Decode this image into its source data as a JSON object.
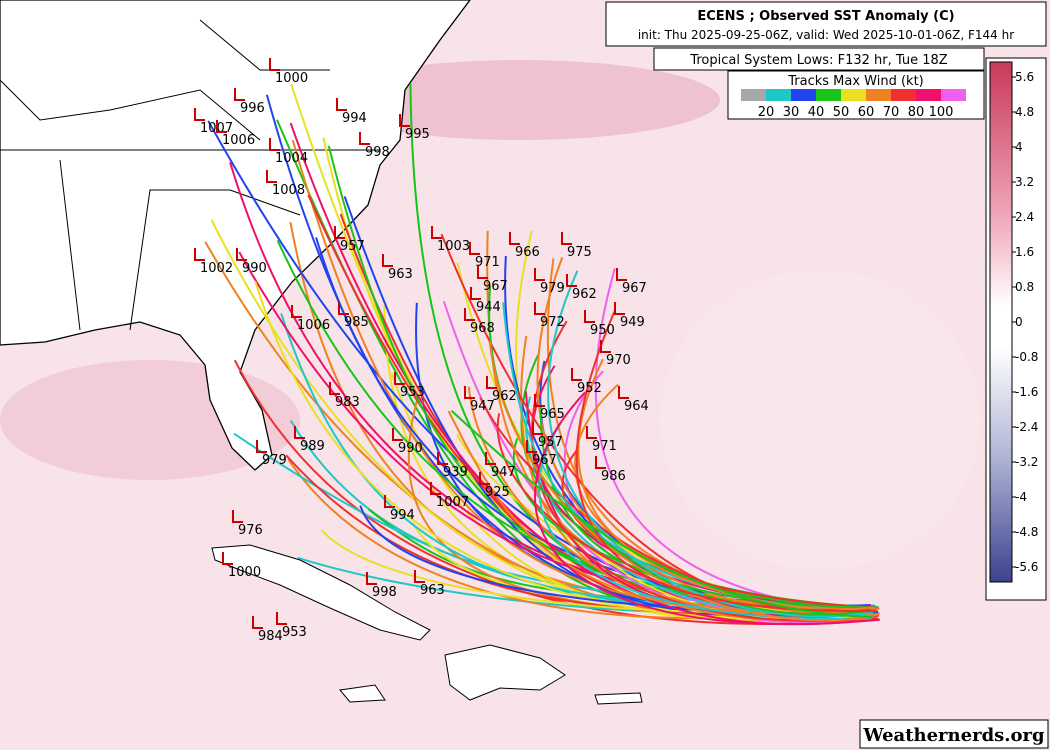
{
  "header": {
    "title": "ECENS ; Observed SST Anomaly (C)",
    "init": "init: Thu 2025-09-25-06Z, valid: Wed 2025-10-01-06Z, F144 hr",
    "subtitle": "Tropical System Lows: F132 hr, Tue 18Z"
  },
  "wind_legend": {
    "title": "Tracks Max Wind (kt)",
    "labels": [
      "20",
      "30",
      "40",
      "50",
      "60",
      "70",
      "80",
      "100"
    ],
    "colors": [
      "#a8a8a8",
      "#1fc7c7",
      "#2244ee",
      "#18c418",
      "#e8e020",
      "#f08020",
      "#f03030",
      "#f0106c",
      "#f060f0"
    ]
  },
  "colorbar": {
    "labels": [
      "5.6",
      "4.8",
      "4",
      "3.2",
      "2.4",
      "1.6",
      "0.8",
      "0",
      "-0.8",
      "-1.6",
      "-2.4",
      "-3.2",
      "-4",
      "-4.8",
      "-5.6"
    ]
  },
  "low_labels": [
    "1000",
    "996",
    "1007",
    "1006",
    "994",
    "995",
    "998",
    "1004",
    "1008",
    "1003",
    "971",
    "966",
    "975",
    "967",
    "957",
    "963",
    "979",
    "962",
    "967",
    "944",
    "972",
    "950",
    "949",
    "1006",
    "985",
    "968",
    "970",
    "953",
    "964",
    "983",
    "952",
    "947",
    "965",
    "962",
    "990",
    "989",
    "957",
    "971",
    "979",
    "939",
    "947",
    "967",
    "986",
    "1007",
    "925",
    "976",
    "994",
    "1000",
    "998",
    "963",
    "984",
    "953",
    "1002",
    "990"
  ],
  "watermark": "Weathernerds.org"
}
